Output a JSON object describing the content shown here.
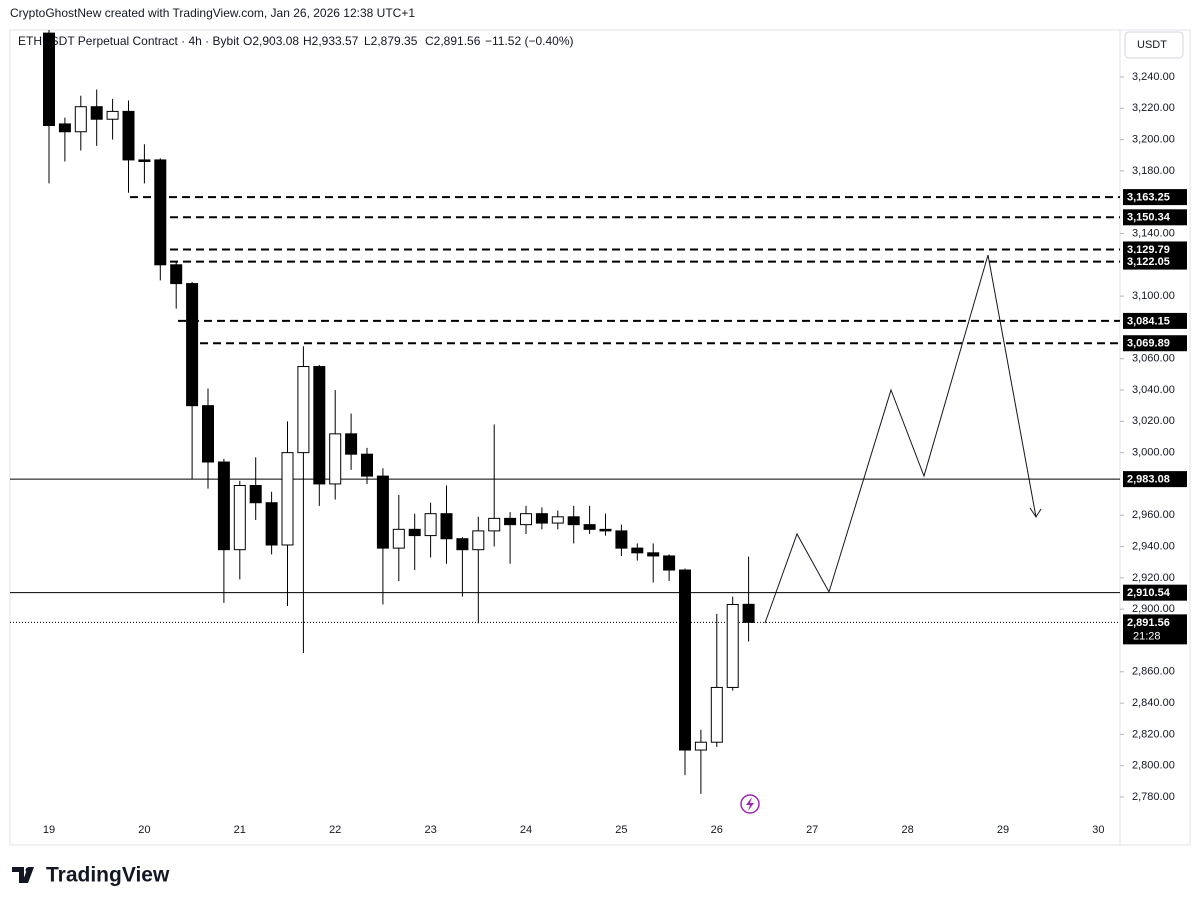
{
  "attribution": "CryptoGhostNew created with TradingView.com, Jan 26, 2026 12:38 UTC+1",
  "brand": "TradingView",
  "chart_data": {
    "type": "candlestick",
    "title": "ETHUSDT Perpetual Contract · 4h · Bybit",
    "ohlc_legend": {
      "open": "O2,903.08",
      "high": "H2,933.57",
      "low": "L2,879.35",
      "close": "C2,891.56",
      "change": "−11.52 (−0.40%)"
    },
    "currency": "USDT",
    "categories": [
      "19",
      null,
      null,
      null,
      null,
      null,
      "20",
      null,
      null,
      null,
      null,
      null,
      "21",
      null,
      null,
      null,
      null,
      null,
      "22",
      null,
      null,
      null,
      null,
      null,
      "23",
      null,
      null,
      null,
      null,
      null,
      "24",
      null,
      null,
      null,
      null,
      null,
      "25",
      null,
      null,
      null,
      null,
      null,
      "26",
      null,
      null
    ],
    "future_dates": [
      "27",
      "28",
      "29",
      "30"
    ],
    "open": [
      3268,
      3210,
      3205,
      3221,
      3213,
      3218,
      3187,
      3187,
      3120,
      3108,
      3030,
      2994,
      2938,
      2979,
      2968,
      2941,
      3000,
      3055,
      2980,
      3012,
      2999,
      2985,
      2939,
      2951,
      2947,
      2961,
      2945,
      2938,
      2950,
      2958,
      2954,
      2961,
      2955,
      2959,
      2954,
      2951,
      2950,
      2939,
      2936,
      2934,
      2925,
      2810,
      2815,
      2850,
      2903.08
    ],
    "high": [
      3270,
      3214,
      3228,
      3232,
      3226,
      3225,
      3197,
      3188,
      3122,
      3109,
      3041,
      2996,
      2982,
      2997,
      2975,
      3020,
      3068,
      3056,
      3040,
      3025,
      3003,
      2990,
      2973,
      2961,
      2968,
      2979,
      2946,
      2959,
      3018,
      2962,
      2966,
      2965,
      2963,
      2966,
      2966,
      2961,
      2954,
      2942,
      2942,
      2935,
      2926,
      2823,
      2897,
      2908,
      2933.57
    ],
    "low": [
      3172,
      3186,
      3193,
      3196,
      3200,
      3166,
      3172,
      3110,
      3092,
      2983,
      2977,
      2904,
      2919,
      2957,
      2935,
      2902,
      2872,
      2966,
      2970,
      2989,
      2980,
      2903,
      2918,
      2925,
      2933,
      2929,
      2908,
      2891,
      2940,
      2929,
      2948,
      2951,
      2951,
      2942,
      2948,
      2947,
      2934,
      2931,
      2917,
      2918,
      2794,
      2782,
      2812,
      2848,
      2879.35
    ],
    "close": [
      3209,
      3205,
      3221,
      3213,
      3218,
      3187,
      3186,
      3120,
      3108,
      3030,
      2994,
      2938,
      2979,
      2968,
      2941,
      3000,
      3055,
      2980,
      3012,
      2999,
      2985,
      2939,
      2951,
      2947,
      2961,
      2945,
      2938,
      2950,
      2958,
      2954,
      2961,
      2955,
      2959,
      2954,
      2951,
      2950,
      2939,
      2936,
      2934,
      2925,
      2810,
      2815,
      2850,
      2903,
      2891.56
    ],
    "up_color": "#ffffff",
    "down_color": "#000000",
    "ylim": [
      2768.5,
      3270
    ],
    "yticks": [
      {
        "value": 3240,
        "label": "3,240.00"
      },
      {
        "value": 3220,
        "label": "3,220.00"
      },
      {
        "value": 3200,
        "label": "3,200.00"
      },
      {
        "value": 3180,
        "label": "3,180.00"
      },
      {
        "value": 3140,
        "label": "3,140.00"
      },
      {
        "value": 3100,
        "label": "3,100.00"
      },
      {
        "value": 3060,
        "label": "3,060.00"
      },
      {
        "value": 3040,
        "label": "3,040.00"
      },
      {
        "value": 3020,
        "label": "3,020.00"
      },
      {
        "value": 3000,
        "label": "3,000.00"
      },
      {
        "value": 2960,
        "label": "2,960.00"
      },
      {
        "value": 2940,
        "label": "2,940.00"
      },
      {
        "value": 2920,
        "label": "2,920.00"
      },
      {
        "value": 2900,
        "label": "2,900.00"
      },
      {
        "value": 2860,
        "label": "2,860.00"
      },
      {
        "value": 2840,
        "label": "2,840.00"
      },
      {
        "value": 2820,
        "label": "2,820.00"
      },
      {
        "value": 2800,
        "label": "2,800.00"
      },
      {
        "value": 2780,
        "label": "2,780.00"
      }
    ],
    "dashed_levels": [
      {
        "value": 3163.25,
        "label": "3,163.25"
      },
      {
        "value": 3150.34,
        "label": "3,150.34"
      },
      {
        "value": 3129.79,
        "label": "3,129.79"
      },
      {
        "value": 3122.05,
        "label": "3,122.05"
      },
      {
        "value": 3084.15,
        "label": "3,084.15"
      },
      {
        "value": 3069.89,
        "label": "3,069.89"
      }
    ],
    "solid_levels": [
      {
        "value": 2983.08,
        "label": "2,983.08"
      },
      {
        "value": 2910.54,
        "label": "2,910.54"
      }
    ],
    "last_price": {
      "value": 2891.56,
      "label": "2,891.56",
      "countdown": "21:28"
    }
  }
}
